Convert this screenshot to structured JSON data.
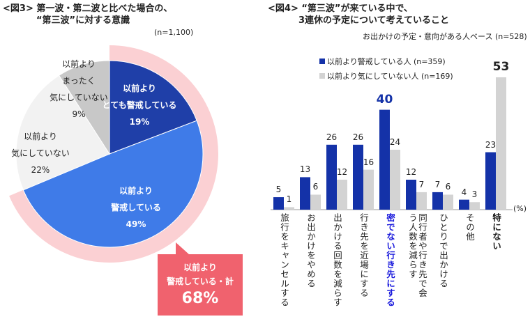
{
  "chart_data": [
    {
      "type": "pie",
      "title_line1": "<図3> 第一波・第二波と比べた場合の、",
      "title_line2": "“第三波”に対する意識",
      "base": "(n=1,100)",
      "slices": [
        {
          "label_lines": [
            "以前より",
            "とても警戒している"
          ],
          "value_label": "19%",
          "value": 19,
          "color": "#1f3fa8",
          "text_color": "#ffffff"
        },
        {
          "label_lines": [
            "以前より",
            "警戒している"
          ],
          "value_label": "49%",
          "value": 49,
          "color": "#3f7be8",
          "text_color": "#ffffff"
        },
        {
          "label_lines": [
            "以前より",
            "気にしていない"
          ],
          "value_label": "22%",
          "value": 22,
          "color": "#f2f2f2",
          "text_color": "#222222"
        },
        {
          "label_lines": [
            "以前より",
            "まったく",
            "気にしていない"
          ],
          "value_label": "9%",
          "value": 9,
          "color": "#c8c8c8",
          "text_color": "#222222"
        }
      ],
      "callout": {
        "line1": "以前より",
        "line2": "警戒している・計",
        "value": "68%",
        "color": "#f0626e",
        "ring_color": "#fbd0d3"
      }
    },
    {
      "type": "bar",
      "title_line1": "<図4> “第三波”が来ている中で、",
      "title_line2": "3連休の予定について考えていること",
      "base": "お出かけの予定・意向がある人ベース (n=528)",
      "unit": "(%)",
      "ylim": [
        0,
        53
      ],
      "categories": [
        "旅行をキャンセルする",
        "お出かけをやめる",
        "出かける回数を減らす",
        "行き先を近場にする",
        "密でない行き先にする",
        "同行者や行き先で会う人数を減らす",
        "ひとりで出かける",
        "その他",
        "特にない"
      ],
      "highlight_category": "密でない行き先にする",
      "highlight_color": "#1a1adc",
      "series": [
        {
          "name": "以前より警戒している人 (n=359)",
          "color": "#1432a8",
          "values": [
            5,
            13,
            26,
            26,
            40,
            12,
            7,
            4,
            23
          ]
        },
        {
          "name": "以前より気にしていない人 (n=169)",
          "color": "#d3d3d3",
          "values": [
            1,
            6,
            12,
            16,
            24,
            7,
            6,
            3,
            53
          ]
        }
      ],
      "emphasized_labels": [
        "40",
        "53"
      ]
    }
  ]
}
